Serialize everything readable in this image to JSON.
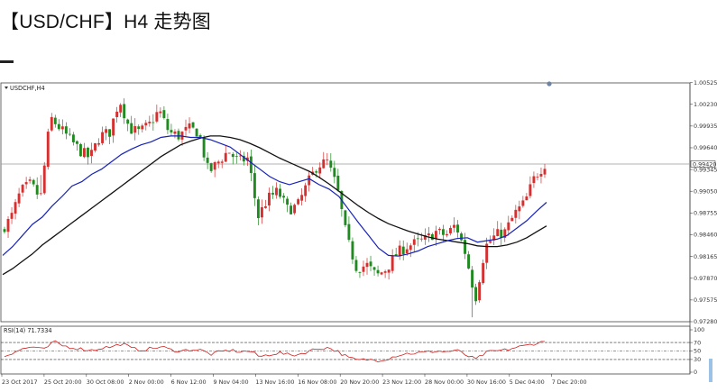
{
  "page": {
    "title": "【USD/CHF】H4 走势图"
  },
  "chart_data": {
    "type": "candlestick",
    "instrument_label": "USDCHF,H4",
    "colors": {
      "bull": "#d62f2f",
      "bear": "#1f8a1f",
      "ma_fast": "#1622b8",
      "ma_slow": "#111111",
      "rsi": "#cc2222",
      "current_price_line": "#9a9a9a"
    },
    "price_axis": {
      "range": [
        0.9728,
        1.0052
      ],
      "tick_labels": [
        "1.00525",
        "1.00230",
        "0.99935",
        "0.99640",
        "0.99345",
        "0.99050",
        "0.98755",
        "0.98460",
        "0.98165",
        "0.97870",
        "0.97575",
        "0.97280"
      ],
      "current_price": "0.99420"
    },
    "time_axis": {
      "tick_labels": [
        "23 Oct 2017",
        "25 Oct 20:00",
        "30 Oct 08:00",
        "2 Nov 00:00",
        "6 Nov 12:00",
        "9 Nov 04:00",
        "13 Nov 16:00",
        "16 Nov 08:00",
        "20 Nov 20:00",
        "23 Nov 12:00",
        "28 Nov 00:00",
        "30 Nov 16:00",
        "5 Dec 04:00",
        "7 Dec 20:00"
      ]
    },
    "price_path": [
      0.9852,
      0.9868,
      0.9905,
      0.9915,
      0.9895,
      1.0005,
      0.999,
      0.9975,
      0.996,
      0.995,
      0.998,
      0.9985,
      1.003,
      0.999,
      0.9985,
      0.9995,
      1.0015,
      0.9985,
      0.998,
      0.999,
      0.9985,
      0.993,
      0.9945,
      0.996,
      0.9945,
      0.995,
      0.987,
      0.9895,
      0.9905,
      0.988,
      0.9885,
      0.9915,
      0.994,
      0.9945,
      0.991,
      0.984,
      0.98,
      0.9805,
      0.979,
      0.98,
      0.982,
      0.983,
      0.9835,
      0.984,
      0.985,
      0.9845,
      0.986,
      0.982,
      0.976,
      0.983,
      0.9845,
      0.985,
      0.9875,
      0.989,
      0.9925,
      0.9942
    ],
    "ma_fast": [
      0.9818,
      0.983,
      0.9845,
      0.986,
      0.987,
      0.9885,
      0.9898,
      0.9912,
      0.9918,
      0.9928,
      0.9935,
      0.9945,
      0.9955,
      0.9962,
      0.9968,
      0.9972,
      0.9978,
      0.998,
      0.998,
      0.9978,
      0.9978,
      0.9975,
      0.997,
      0.9965,
      0.9955,
      0.9945,
      0.9935,
      0.9925,
      0.9918,
      0.9914,
      0.9918,
      0.9922,
      0.9914,
      0.9908,
      0.9898,
      0.988,
      0.9862,
      0.9845,
      0.9828,
      0.9818,
      0.9817,
      0.982,
      0.9824,
      0.983,
      0.9834,
      0.9838,
      0.9841,
      0.9842,
      0.9836,
      0.9838,
      0.984,
      0.9845,
      0.9855,
      0.9865,
      0.9878,
      0.989
    ],
    "ma_slow": [
      0.9792,
      0.98,
      0.981,
      0.982,
      0.9832,
      0.9842,
      0.9852,
      0.9862,
      0.9872,
      0.9882,
      0.9892,
      0.9902,
      0.9912,
      0.9922,
      0.9932,
      0.9942,
      0.9952,
      0.996,
      0.9968,
      0.9973,
      0.9977,
      0.998,
      0.998,
      0.9978,
      0.9975,
      0.997,
      0.9964,
      0.9957,
      0.995,
      0.9944,
      0.9938,
      0.9932,
      0.9924,
      0.9915,
      0.9905,
      0.9895,
      0.9885,
      0.9876,
      0.9868,
      0.9861,
      0.9856,
      0.9851,
      0.9847,
      0.9843,
      0.984,
      0.9838,
      0.9836,
      0.9834,
      0.9831,
      0.983,
      0.983,
      0.9832,
      0.9836,
      0.9842,
      0.985,
      0.9858
    ],
    "rsi": {
      "label": "RSI(14) 71.7334",
      "range": [
        0,
        100
      ],
      "tick_labels": [
        "100",
        "70",
        "50",
        "30",
        "0"
      ],
      "levels": [
        70,
        50,
        30
      ],
      "values": [
        38,
        48,
        56,
        60,
        52,
        72,
        62,
        58,
        54,
        52,
        58,
        60,
        68,
        55,
        53,
        56,
        60,
        52,
        50,
        54,
        52,
        42,
        48,
        52,
        48,
        50,
        36,
        42,
        46,
        40,
        42,
        50,
        56,
        58,
        48,
        34,
        28,
        30,
        28,
        32,
        40,
        44,
        45,
        47,
        50,
        48,
        52,
        40,
        30,
        46,
        50,
        52,
        58,
        62,
        68,
        72
      ]
    }
  }
}
